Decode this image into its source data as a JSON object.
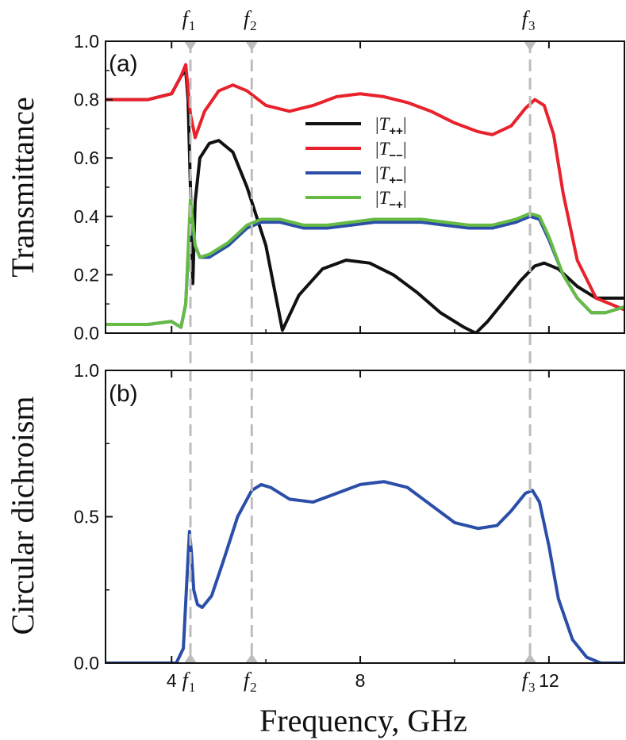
{
  "figure": {
    "xlabel": "Frequency, GHz",
    "xlim": [
      2.6,
      13.6
    ],
    "xticks": [
      4,
      8,
      12
    ],
    "markers": [
      {
        "name": "f",
        "sub": "1",
        "x": 4.4
      },
      {
        "name": "f",
        "sub": "2",
        "x": 5.7
      },
      {
        "name": "f",
        "sub": "3",
        "x": 11.6
      }
    ],
    "marker_color": "#bdbdbd"
  },
  "chart_data": [
    {
      "type": "line",
      "panel_label": "(a)",
      "ylabel": "Transmittance",
      "ylim": [
        0.0,
        1.0
      ],
      "yticks": [
        "0.0",
        "0.2",
        "0.4",
        "0.6",
        "0.8",
        "1.0"
      ],
      "legend_position": "center",
      "series": [
        {
          "name": "|T++|",
          "label_main": "T",
          "label_sub": "++",
          "color": "#111111",
          "x": [
            2.6,
            3.5,
            4.0,
            4.2,
            4.3,
            4.35,
            4.4,
            4.45,
            4.5,
            4.6,
            4.8,
            5.0,
            5.3,
            5.6,
            6.0,
            6.35,
            6.7,
            7.2,
            7.7,
            8.2,
            8.7,
            9.2,
            9.7,
            10.2,
            10.45,
            10.7,
            11.0,
            11.4,
            11.7,
            11.9,
            12.2,
            12.6,
            13.0,
            13.6
          ],
          "y": [
            0.8,
            0.8,
            0.82,
            0.88,
            0.9,
            0.8,
            0.5,
            0.17,
            0.45,
            0.6,
            0.65,
            0.66,
            0.62,
            0.5,
            0.3,
            0.01,
            0.13,
            0.22,
            0.25,
            0.24,
            0.2,
            0.14,
            0.07,
            0.02,
            0.0,
            0.04,
            0.1,
            0.18,
            0.23,
            0.24,
            0.22,
            0.16,
            0.12,
            0.12
          ]
        },
        {
          "name": "|T--|",
          "label_main": "T",
          "label_sub": "−−",
          "color": "#e8212b",
          "x": [
            2.6,
            3.5,
            4.0,
            4.2,
            4.3,
            4.4,
            4.5,
            4.7,
            5.0,
            5.3,
            5.6,
            6.0,
            6.5,
            7.0,
            7.5,
            8.0,
            8.5,
            9.0,
            9.5,
            10.0,
            10.5,
            10.8,
            11.2,
            11.5,
            11.7,
            11.9,
            12.1,
            12.3,
            12.6,
            13.0,
            13.6
          ],
          "y": [
            0.8,
            0.8,
            0.82,
            0.88,
            0.92,
            0.75,
            0.67,
            0.76,
            0.83,
            0.85,
            0.83,
            0.78,
            0.76,
            0.78,
            0.81,
            0.82,
            0.81,
            0.79,
            0.76,
            0.72,
            0.69,
            0.68,
            0.71,
            0.77,
            0.8,
            0.78,
            0.68,
            0.48,
            0.25,
            0.12,
            0.08
          ]
        },
        {
          "name": "|T+-|",
          "label_main": "T",
          "label_sub": "+−",
          "color": "#2b4ea8",
          "x": [
            2.6,
            3.5,
            4.0,
            4.2,
            4.3,
            4.4,
            4.5,
            4.6,
            4.8,
            5.2,
            5.6,
            5.9,
            6.3,
            6.8,
            7.3,
            7.8,
            8.3,
            8.8,
            9.3,
            9.8,
            10.3,
            10.8,
            11.3,
            11.6,
            11.8,
            12.0,
            12.3,
            12.6,
            12.9,
            13.2,
            13.6
          ],
          "y": [
            0.03,
            0.03,
            0.04,
            0.02,
            0.1,
            0.42,
            0.3,
            0.26,
            0.26,
            0.3,
            0.36,
            0.38,
            0.38,
            0.36,
            0.36,
            0.37,
            0.38,
            0.38,
            0.38,
            0.37,
            0.36,
            0.36,
            0.38,
            0.4,
            0.39,
            0.32,
            0.2,
            0.12,
            0.07,
            0.07,
            0.09
          ]
        },
        {
          "name": "|T-+|",
          "label_main": "T",
          "label_sub": "−+",
          "color": "#66bb44",
          "x": [
            2.6,
            3.5,
            4.0,
            4.2,
            4.3,
            4.4,
            4.5,
            4.6,
            4.8,
            5.2,
            5.6,
            5.9,
            6.3,
            6.8,
            7.3,
            7.8,
            8.3,
            8.8,
            9.3,
            9.8,
            10.3,
            10.8,
            11.3,
            11.6,
            11.8,
            12.0,
            12.3,
            12.6,
            12.9,
            13.2,
            13.6
          ],
          "y": [
            0.03,
            0.03,
            0.04,
            0.02,
            0.1,
            0.46,
            0.3,
            0.26,
            0.27,
            0.31,
            0.37,
            0.39,
            0.39,
            0.37,
            0.37,
            0.38,
            0.39,
            0.39,
            0.39,
            0.38,
            0.37,
            0.37,
            0.39,
            0.41,
            0.4,
            0.33,
            0.2,
            0.12,
            0.07,
            0.07,
            0.09
          ]
        }
      ]
    },
    {
      "type": "line",
      "panel_label": "(b)",
      "ylabel": "Circular dichroism",
      "ylim": [
        0.0,
        1.0
      ],
      "yticks": [
        "0.0",
        "0.5",
        "1.0"
      ],
      "series": [
        {
          "name": "",
          "color": "#2b4ea8",
          "x": [
            2.6,
            3.5,
            4.1,
            4.25,
            4.33,
            4.38,
            4.42,
            4.47,
            4.55,
            4.65,
            4.85,
            5.1,
            5.4,
            5.7,
            5.9,
            6.1,
            6.5,
            7.0,
            7.5,
            8.0,
            8.5,
            9.0,
            9.5,
            10.0,
            10.5,
            10.9,
            11.2,
            11.5,
            11.65,
            11.8,
            12.0,
            12.2,
            12.5,
            12.8,
            13.1,
            13.6
          ],
          "y": [
            0.0,
            0.0,
            0.0,
            0.05,
            0.3,
            0.45,
            0.38,
            0.25,
            0.2,
            0.19,
            0.23,
            0.35,
            0.5,
            0.59,
            0.61,
            0.6,
            0.56,
            0.55,
            0.58,
            0.61,
            0.62,
            0.6,
            0.54,
            0.48,
            0.46,
            0.47,
            0.52,
            0.58,
            0.59,
            0.55,
            0.4,
            0.22,
            0.08,
            0.02,
            0.0,
            0.0
          ]
        }
      ]
    }
  ]
}
